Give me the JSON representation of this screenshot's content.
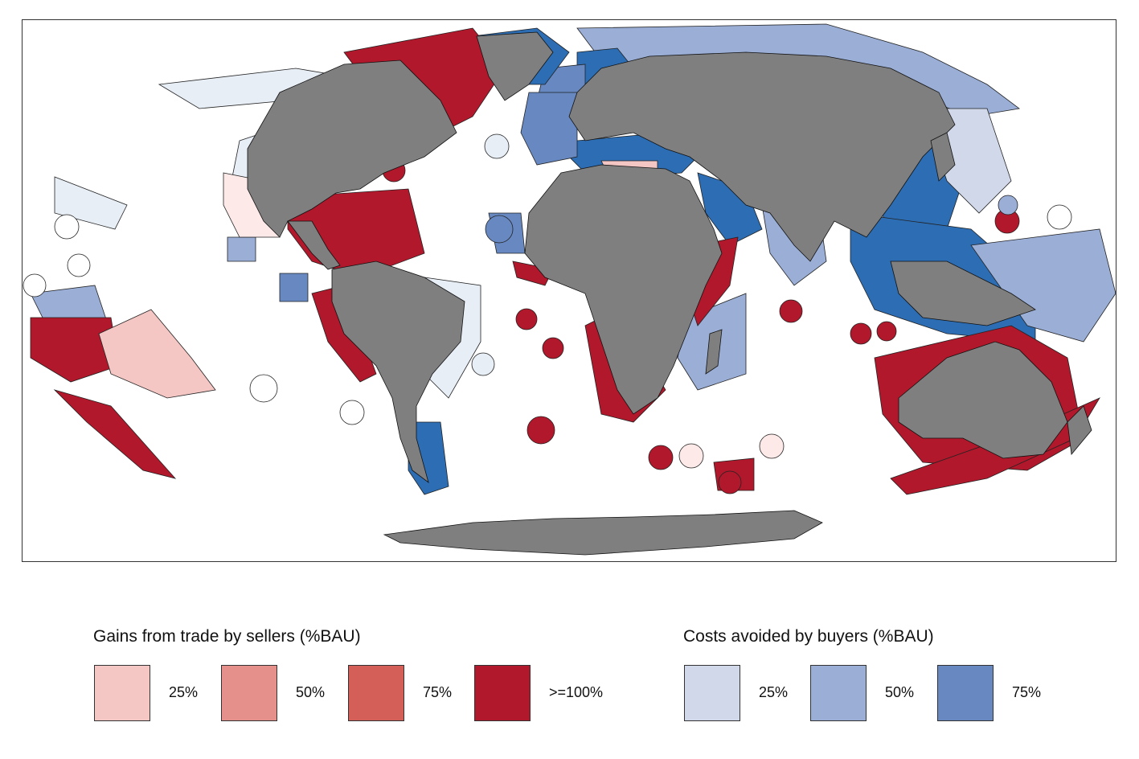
{
  "map": {
    "projection": "robinson-like world map",
    "land_color": "#7f7f7f",
    "frame_color": "#333333"
  },
  "legend_sellers": {
    "title": "Gains from trade by sellers (%BAU)",
    "items": [
      {
        "label": "25%",
        "color": "#f4c6c4"
      },
      {
        "label": "50%",
        "color": "#e5908a"
      },
      {
        "label": "75%",
        "color": "#d35f58"
      },
      {
        "label": ">=100%",
        "color": "#b2182b"
      }
    ]
  },
  "legend_buyers": {
    "title": "Costs avoided by buyers (%BAU)",
    "items": [
      {
        "label": "25%",
        "color": "#d0d8ea"
      },
      {
        "label": "50%",
        "color": "#9aaed6"
      },
      {
        "label": "75%",
        "color": "#6788c0"
      }
    ]
  },
  "colors": {
    "blue_dark": "#2c6db3",
    "blue_pale": "#e8eef6"
  }
}
